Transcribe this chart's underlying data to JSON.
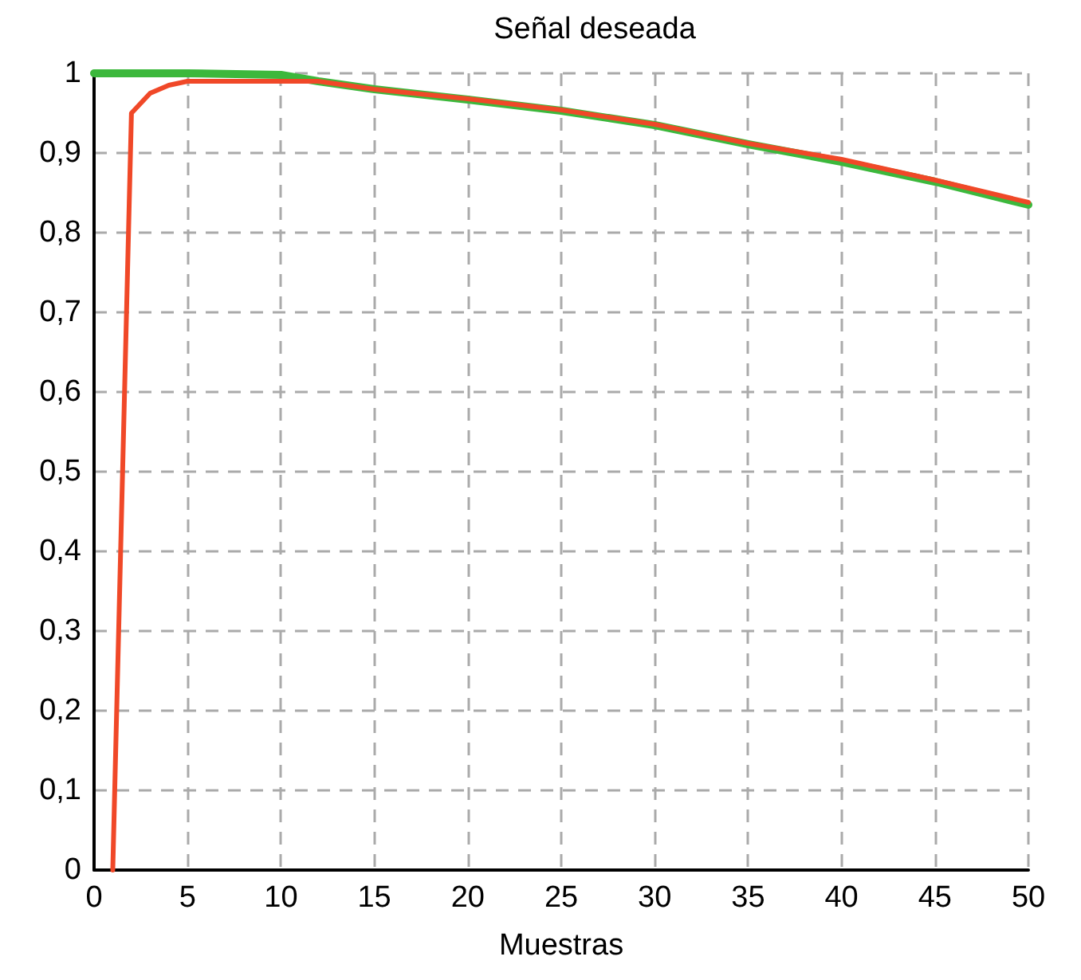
{
  "chart_data": {
    "type": "line",
    "title": "Señal deseada",
    "xlabel": "Muestras",
    "xlim": [
      0,
      50
    ],
    "xticks": [
      0,
      5,
      10,
      15,
      20,
      25,
      30,
      35,
      40,
      45,
      50
    ],
    "ylim": [
      0,
      1
    ],
    "yticks": [
      {
        "value": 0,
        "label": "0"
      },
      {
        "value": 0.1,
        "label": "0,1"
      },
      {
        "value": 0.2,
        "label": "0,2"
      },
      {
        "value": 0.3,
        "label": "0,3"
      },
      {
        "value": 0.4,
        "label": "0,4"
      },
      {
        "value": 0.5,
        "label": "0,5"
      },
      {
        "value": 0.6,
        "label": "0,6"
      },
      {
        "value": 0.7,
        "label": "0,7"
      },
      {
        "value": 0.8,
        "label": "0,8"
      },
      {
        "value": 0.9,
        "label": "0,9"
      },
      {
        "value": 1,
        "label": "1"
      }
    ],
    "grid": true,
    "marker": "none",
    "line_style": "solid",
    "series": [
      {
        "color": "#3cb83c",
        "x": [
          0,
          5,
          10,
          12,
          15,
          20,
          25,
          30,
          35,
          40,
          45,
          50
        ],
        "values": [
          1,
          1,
          0.998,
          0.99,
          0.98,
          0.967,
          0.953,
          0.935,
          0.911,
          0.889,
          0.864,
          0.835
        ]
      },
      {
        "color": "#f04828",
        "x": [
          1,
          2,
          3,
          4,
          5,
          8,
          12,
          15,
          20,
          25,
          30,
          35,
          40,
          45,
          50
        ],
        "values": [
          0,
          0.95,
          0.975,
          0.985,
          0.99,
          0.99,
          0.99,
          0.98,
          0.968,
          0.954,
          0.936,
          0.912,
          0.892,
          0.866,
          0.838
        ]
      }
    ]
  }
}
